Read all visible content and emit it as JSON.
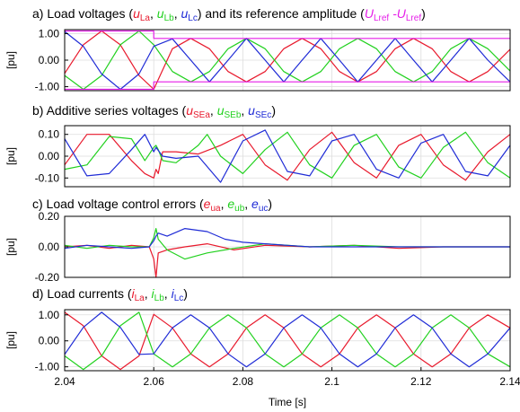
{
  "colors": {
    "a": "#e8192c",
    "b": "#22d11f",
    "c": "#1f2bd6",
    "ref": "#e51ee8"
  },
  "x_axis": {
    "label": "Time [s]",
    "range": [
      2.04,
      2.14
    ],
    "ticks": [
      2.04,
      2.06,
      2.08,
      2.1,
      2.12,
      2.14
    ],
    "tick_labels": [
      "2.04",
      "2.06",
      "2.08",
      "2.1",
      "2.12",
      "2.14"
    ]
  },
  "chart_data": [
    {
      "type": "line",
      "panel": "a",
      "title": {
        "prefix": "a) Load voltages (",
        "parts": [
          {
            "sym": "u",
            "sub": "La",
            "color": "a"
          },
          {
            "sym": "u",
            "sub": "Lb",
            "color": "b"
          },
          {
            "sym": "u",
            "sub": "Lc",
            "color": "c"
          }
        ],
        "mid": ") and its reference amplitude (",
        "ref_parts": [
          {
            "sym": "U",
            "sub": "Lref",
            "color": "ref"
          },
          {
            "sym": "-U",
            "sub": "Lref",
            "color": "ref"
          }
        ],
        "suffix": ")"
      },
      "ylabel": "[pu]",
      "ylim": [
        -1.15,
        1.15
      ],
      "yticks": [
        1.0,
        0.0,
        -1.0
      ],
      "ytick_labels": [
        "1.00",
        "0.00",
        "-1.00"
      ],
      "series": [
        {
          "color": "a",
          "x": [
            2.04,
            2.0442,
            2.0483,
            2.0525,
            2.0567,
            2.06,
            2.0642,
            2.0683,
            2.0725,
            2.0767,
            2.0808,
            2.085,
            2.0892,
            2.0933,
            2.0975,
            2.1017,
            2.1058,
            2.11,
            2.1142,
            2.1183,
            2.1225,
            2.1267,
            2.1308,
            2.135,
            2.14
          ],
          "y": [
            -0.5,
            0.58,
            1.1,
            0.58,
            -0.58,
            -1.1,
            0.43,
            0.82,
            0.43,
            -0.43,
            -0.82,
            -0.43,
            0.43,
            0.82,
            0.43,
            -0.43,
            -0.82,
            -0.43,
            0.43,
            0.82,
            0.43,
            -0.43,
            -0.82,
            -0.43,
            0.41
          ]
        },
        {
          "color": "b",
          "x": [
            2.04,
            2.0442,
            2.0483,
            2.0525,
            2.0567,
            2.06,
            2.0642,
            2.0683,
            2.0725,
            2.0767,
            2.0808,
            2.085,
            2.0892,
            2.0933,
            2.0975,
            2.1017,
            2.1058,
            2.11,
            2.1142,
            2.1183,
            2.1225,
            2.1267,
            2.1308,
            2.135,
            2.14
          ],
          "y": [
            -0.58,
            -1.1,
            -0.58,
            0.58,
            1.1,
            0.58,
            -0.43,
            -0.82,
            -0.43,
            0.43,
            0.82,
            0.43,
            -0.43,
            -0.82,
            -0.43,
            0.43,
            0.82,
            0.43,
            -0.43,
            -0.82,
            -0.43,
            0.43,
            0.82,
            0.43,
            -0.41
          ]
        },
        {
          "color": "c",
          "x": [
            2.04,
            2.0442,
            2.0483,
            2.0525,
            2.0567,
            2.06,
            2.0642,
            2.0683,
            2.0725,
            2.0767,
            2.0808,
            2.085,
            2.0892,
            2.0933,
            2.0975,
            2.1017,
            2.1058,
            2.11,
            2.1142,
            2.1183,
            2.1225,
            2.1267,
            2.1308,
            2.135,
            2.14
          ],
          "y": [
            1.08,
            0.52,
            -0.52,
            -1.1,
            -0.52,
            0.52,
            0.8,
            0.0,
            -0.82,
            0.0,
            0.82,
            0.0,
            -0.82,
            0.0,
            0.82,
            0.0,
            -0.82,
            0.0,
            0.82,
            0.0,
            -0.82,
            0.0,
            0.82,
            0.0,
            -0.82
          ]
        },
        {
          "color": "ref",
          "x": [
            2.04,
            2.06,
            2.06,
            2.14
          ],
          "y": [
            1.1,
            1.1,
            0.82,
            0.82
          ]
        },
        {
          "color": "ref",
          "x": [
            2.04,
            2.06,
            2.06,
            2.14
          ],
          "y": [
            -1.1,
            -1.1,
            -0.82,
            -0.82
          ]
        }
      ]
    },
    {
      "type": "line",
      "panel": "b",
      "title": {
        "prefix": "b) Additive series voltages (",
        "parts": [
          {
            "sym": "u",
            "sub": "SEa",
            "color": "a"
          },
          {
            "sym": "u",
            "sub": "SEb",
            "color": "b"
          },
          {
            "sym": "u",
            "sub": "SEc",
            "color": "c"
          }
        ],
        "suffix": ")"
      },
      "ylabel": "[pu]",
      "ylim": [
        -0.14,
        0.14
      ],
      "yticks": [
        0.1,
        0.0,
        -0.1
      ],
      "ytick_labels": [
        "0.10",
        "0.00",
        "-0.10"
      ],
      "series": [
        {
          "color": "a",
          "x": [
            2.04,
            2.045,
            2.05,
            2.055,
            2.058,
            2.06,
            2.0605,
            2.061,
            2.062,
            2.065,
            2.07,
            2.075,
            2.08,
            2.085,
            2.09,
            2.095,
            2.1,
            2.105,
            2.11,
            2.115,
            2.12,
            2.125,
            2.13,
            2.135,
            2.14
          ],
          "y": [
            -0.04,
            0.1,
            0.1,
            -0.02,
            -0.08,
            -0.1,
            -0.06,
            -0.08,
            0.02,
            0.02,
            0.01,
            0.05,
            0.1,
            -0.04,
            -0.11,
            0.03,
            0.11,
            -0.03,
            -0.1,
            0.05,
            0.1,
            -0.04,
            -0.11,
            0.02,
            0.1
          ]
        },
        {
          "color": "b",
          "x": [
            2.04,
            2.045,
            2.05,
            2.055,
            2.058,
            2.06,
            2.0605,
            2.061,
            2.062,
            2.065,
            2.07,
            2.072,
            2.075,
            2.08,
            2.085,
            2.09,
            2.095,
            2.1,
            2.105,
            2.11,
            2.115,
            2.12,
            2.125,
            2.13,
            2.135,
            2.14
          ],
          "y": [
            -0.06,
            -0.04,
            0.09,
            0.08,
            -0.02,
            0.04,
            0.05,
            0.03,
            -0.02,
            -0.03,
            0.05,
            0.1,
            0.0,
            -0.08,
            0.03,
            0.11,
            -0.04,
            -0.1,
            0.05,
            0.1,
            -0.05,
            -0.1,
            0.04,
            0.11,
            -0.03,
            -0.1
          ]
        },
        {
          "color": "c",
          "x": [
            2.04,
            2.045,
            2.05,
            2.055,
            2.058,
            2.06,
            2.0605,
            2.062,
            2.065,
            2.07,
            2.075,
            2.08,
            2.085,
            2.09,
            2.095,
            2.1,
            2.105,
            2.11,
            2.115,
            2.12,
            2.125,
            2.13,
            2.135,
            2.14
          ],
          "y": [
            0.08,
            -0.09,
            -0.08,
            0.03,
            0.1,
            0.02,
            0.04,
            0.0,
            -0.01,
            0.0,
            -0.12,
            0.07,
            0.12,
            -0.07,
            -0.09,
            0.07,
            0.1,
            -0.06,
            -0.1,
            0.06,
            0.1,
            -0.07,
            -0.09,
            0.05
          ]
        }
      ]
    },
    {
      "type": "line",
      "panel": "c",
      "title": {
        "prefix": "c) Load voltage control errors (",
        "parts": [
          {
            "sym": "e",
            "sub": "ua",
            "color": "a"
          },
          {
            "sym": "e",
            "sub": "ub",
            "color": "b"
          },
          {
            "sym": "e",
            "sub": "uc",
            "color": "c"
          }
        ],
        "suffix": ")"
      },
      "ylabel": "[pu]",
      "ylim": [
        -0.2,
        0.2
      ],
      "yticks": [
        0.2,
        0.0,
        -0.2
      ],
      "ytick_labels": [
        "0.20",
        "0.00",
        "-0.20"
      ],
      "series": [
        {
          "color": "a",
          "x": [
            2.04,
            2.045,
            2.05,
            2.055,
            2.059,
            2.06,
            2.0605,
            2.061,
            2.063,
            2.067,
            2.072,
            2.078,
            2.085,
            2.095,
            2.105,
            2.115,
            2.125,
            2.14
          ],
          "y": [
            0.0,
            0.01,
            -0.01,
            0.01,
            0.0,
            -0.08,
            -0.2,
            -0.04,
            -0.02,
            0.0,
            0.02,
            -0.02,
            0.01,
            0.0,
            0.01,
            -0.01,
            0.0,
            0.0
          ]
        },
        {
          "color": "b",
          "x": [
            2.04,
            2.045,
            2.05,
            2.055,
            2.059,
            2.06,
            2.0605,
            2.061,
            2.063,
            2.067,
            2.072,
            2.078,
            2.085,
            2.095,
            2.105,
            2.115,
            2.125,
            2.14
          ],
          "y": [
            0.01,
            -0.01,
            0.01,
            0.0,
            0.0,
            0.06,
            0.12,
            0.05,
            -0.02,
            -0.08,
            -0.04,
            -0.01,
            0.02,
            0.0,
            0.01,
            0.0,
            0.0,
            0.0
          ]
        },
        {
          "color": "c",
          "x": [
            2.04,
            2.045,
            2.05,
            2.055,
            2.059,
            2.06,
            2.0605,
            2.061,
            2.063,
            2.067,
            2.072,
            2.076,
            2.08,
            2.085,
            2.09,
            2.095,
            2.1,
            2.11,
            2.12,
            2.14
          ],
          "y": [
            -0.01,
            0.01,
            0.0,
            -0.01,
            0.0,
            0.04,
            0.07,
            0.09,
            0.07,
            0.12,
            0.1,
            0.05,
            0.03,
            0.02,
            0.01,
            0.0,
            0.0,
            0.0,
            0.0,
            0.0
          ]
        }
      ]
    },
    {
      "type": "line",
      "panel": "d",
      "title": {
        "prefix": "d) Load currents (",
        "parts": [
          {
            "sym": "i",
            "sub": "La",
            "color": "a"
          },
          {
            "sym": "i",
            "sub": "Lb",
            "color": "b"
          },
          {
            "sym": "i",
            "sub": "Lc",
            "color": "c"
          }
        ],
        "suffix": ")"
      },
      "ylabel": "[pu]",
      "ylim": [
        -1.15,
        1.2
      ],
      "yticks": [
        1.0,
        0.0,
        -1.0
      ],
      "ytick_labels": [
        "1.00",
        "0.00",
        "-1.00"
      ],
      "series": [
        {
          "color": "a",
          "x": [
            2.04,
            2.0442,
            2.0483,
            2.0525,
            2.0567,
            2.06,
            2.0642,
            2.0683,
            2.0725,
            2.0767,
            2.0808,
            2.085,
            2.0892,
            2.0933,
            2.0975,
            2.1017,
            2.1058,
            2.11,
            2.1142,
            2.1183,
            2.1225,
            2.1267,
            2.1308,
            2.135,
            2.14
          ],
          "y": [
            1.1,
            0.58,
            -0.58,
            -1.1,
            -0.58,
            1.02,
            0.5,
            -0.5,
            -1.0,
            -0.5,
            0.5,
            1.0,
            0.5,
            -0.5,
            -1.0,
            -0.5,
            0.5,
            1.0,
            0.5,
            -0.5,
            -1.0,
            -0.5,
            0.5,
            1.0,
            0.5
          ]
        },
        {
          "color": "b",
          "x": [
            2.04,
            2.0442,
            2.0483,
            2.0525,
            2.0567,
            2.06,
            2.0642,
            2.0683,
            2.0725,
            2.0767,
            2.0808,
            2.085,
            2.0892,
            2.0933,
            2.0975,
            2.1017,
            2.1058,
            2.11,
            2.1142,
            2.1183,
            2.1225,
            2.1267,
            2.1308,
            2.135,
            2.14
          ],
          "y": [
            -0.58,
            -1.1,
            -0.58,
            0.58,
            1.1,
            -0.5,
            -1.0,
            -0.5,
            0.5,
            1.0,
            0.5,
            -0.5,
            -1.0,
            -0.5,
            0.5,
            1.0,
            0.5,
            -0.5,
            -1.0,
            -0.5,
            0.5,
            1.0,
            0.5,
            -0.5,
            -1.0
          ]
        },
        {
          "color": "c",
          "x": [
            2.04,
            2.0442,
            2.0483,
            2.0525,
            2.0567,
            2.06,
            2.0642,
            2.0683,
            2.0725,
            2.0767,
            2.0808,
            2.085,
            2.0892,
            2.0933,
            2.0975,
            2.1017,
            2.1058,
            2.11,
            2.1142,
            2.1183,
            2.1225,
            2.1267,
            2.1308,
            2.135,
            2.14
          ],
          "y": [
            -0.52,
            0.52,
            1.1,
            0.52,
            -0.52,
            -0.5,
            0.5,
            1.0,
            0.5,
            -0.5,
            -1.0,
            -0.5,
            0.5,
            1.0,
            0.5,
            -0.5,
            -1.0,
            -0.5,
            0.5,
            1.0,
            0.5,
            -0.5,
            -1.0,
            -0.5,
            0.5
          ]
        }
      ]
    }
  ]
}
